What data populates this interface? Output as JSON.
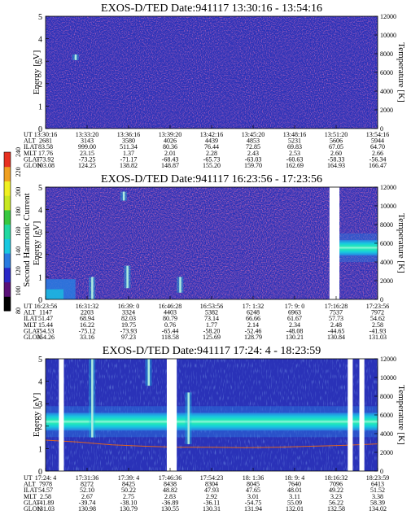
{
  "figure": {
    "colorbar": {
      "label": "Second Harmonic Current",
      "ticks": [
        "80",
        "100",
        "120",
        "140",
        "160",
        "180",
        "200",
        "220",
        "240"
      ],
      "colors": [
        "#000000",
        "#5a1078",
        "#2a28c8",
        "#2a7be0",
        "#18c8e0",
        "#20d8a0",
        "#38c840",
        "#c8e820",
        "#f0f020",
        "#f0a020",
        "#e83020"
      ]
    },
    "colors": {
      "background": "#2a32b8",
      "noise": "#701e7e",
      "band": "#22e8b8",
      "band_core": "#8ff8d8",
      "streak": "#ffffe0",
      "temperature_line": "#e06420",
      "gap": "#ffffff"
    }
  },
  "panels": [
    {
      "title": "EXOS-D/TED   Date:941117   13:30:16 - 13:54:16",
      "ylabel": "Energy [eV]",
      "y2label": "Temperature [K]",
      "yticks": [
        "0",
        "1",
        "2",
        "3",
        "4",
        "5"
      ],
      "y2ticks": [
        "0",
        "2000",
        "4000",
        "6000",
        "8000",
        "10000",
        "12000"
      ],
      "rows": [
        {
          "label": "UT",
          "values": [
            "13:30:16",
            "13:33:20",
            "13:36:16",
            "13:39:20",
            "13:42:16",
            "13:45:20",
            "13:48:16",
            "13:51:20",
            "13:54:16"
          ]
        },
        {
          "label": "ALT",
          "values": [
            "2681",
            "3143",
            "3580",
            "4026",
            "4439",
            "4853",
            "5231",
            "5606",
            "5944"
          ]
        },
        {
          "label": "ILAT",
          "values": [
            "83.58",
            "999.00",
            "511.34",
            "80.36",
            "76.44",
            "72.85",
            "69.83",
            "67.05",
            "64.70"
          ]
        },
        {
          "label": "MLT",
          "values": [
            "17.76",
            "23.15",
            "1.37",
            "2.01",
            "2.28",
            "2.43",
            "2.53",
            "2.60",
            "2.66"
          ]
        },
        {
          "label": "GLAT",
          "values": [
            "-73.92",
            "-73.25",
            "-71.17",
            "-68.43",
            "-65.73",
            "-63.03",
            "-60.63",
            "-58.33",
            "-56.34"
          ]
        },
        {
          "label": "GLON",
          "values": [
            "103.08",
            "124.25",
            "138.82",
            "148.87",
            "155.20",
            "159.70",
            "162.69",
            "164.93",
            "166.47"
          ]
        }
      ]
    },
    {
      "title": "EXOS-D/TED   Date:941117   16:23:56 - 17:23:56",
      "ylabel": "Energy [eV]",
      "y2label": "Temperature [K]",
      "yticks": [
        "0",
        "1",
        "2",
        "3",
        "4",
        "5"
      ],
      "y2ticks": [
        "0",
        "2000",
        "4000",
        "6000",
        "8000",
        "10000",
        "12000"
      ],
      "rows": [
        {
          "label": "UT",
          "values": [
            "16:23:56",
            "16:31:32",
            "16:39: 0",
            "16:46:28",
            "16:53:56",
            "17: 1:32",
            "17: 9: 0",
            "17:16:28",
            "17:23:56"
          ]
        },
        {
          "label": "ALT",
          "values": [
            "1147",
            "2203",
            "3324",
            "4403",
            "5382",
            "6248",
            "6963",
            "7537",
            "7972"
          ]
        },
        {
          "label": "ILAT",
          "values": [
            "51.47",
            "68.94",
            "82.03",
            "80.79",
            "73.14",
            "66.66",
            "61.67",
            "57.73",
            "54.62"
          ]
        },
        {
          "label": "MLT",
          "values": [
            "15.44",
            "16.22",
            "19.75",
            "0.76",
            "1.77",
            "2.14",
            "2.34",
            "2.48",
            "2.58"
          ]
        },
        {
          "label": "GLAT",
          "values": [
            "-54.53",
            "-75.12",
            "-73.93",
            "-65.44",
            "-58.20",
            "-52.46",
            "-48.08",
            "-44.65",
            "-41.93"
          ]
        },
        {
          "label": "GLON",
          "values": [
            "354.26",
            "33.16",
            "97.23",
            "118.58",
            "125.69",
            "128.79",
            "130.21",
            "130.84",
            "131.03"
          ]
        }
      ]
    },
    {
      "title": "EXOS-D/TED   Date:941117   17:24: 4 - 18:23:59",
      "ylabel": "Energy [eV]",
      "y2label": "Temperature [K]",
      "yticks": [
        "0",
        "1",
        "2",
        "3",
        "4",
        "5"
      ],
      "y2ticks": [
        "0",
        "2000",
        "4000",
        "6000",
        "8000",
        "10000",
        "12000"
      ],
      "rows": [
        {
          "label": "UT",
          "values": [
            "17:24: 4",
            "17:31:36",
            "17:39: 4",
            "17:46:36",
            "17:54:23",
            "18: 1:36",
            "18: 9: 4",
            "18:16:32",
            "18:23:59"
          ]
        },
        {
          "label": "ALT",
          "values": [
            "7978",
            "8272",
            "8425",
            "8438",
            "8304",
            "8045",
            "7640",
            "7096",
            "6413"
          ]
        },
        {
          "label": "ILAT",
          "values": [
            "54.57",
            "52.10",
            "50.22",
            "48.82",
            "47.93",
            "47.65",
            "48.01",
            "49.22",
            "51.52"
          ]
        },
        {
          "label": "MLT",
          "values": [
            "2.58",
            "2.67",
            "2.75",
            "2.83",
            "2.92",
            "3.01",
            "3.11",
            "3.23",
            "3.38"
          ]
        },
        {
          "label": "GLAT",
          "values": [
            "-41.89",
            "-39.74",
            "-38.10",
            "-36.89",
            "-36.11",
            "-54.75",
            "55.09",
            "56.22",
            "58.39"
          ]
        },
        {
          "label": "GLON",
          "values": [
            "131.03",
            "130.98",
            "130.79",
            "130.55",
            "130.31",
            "131.94",
            "132.01",
            "132.58",
            "134.02"
          ]
        }
      ]
    }
  ],
  "chart_data": [
    {
      "type": "heatmap",
      "title": "EXOS-D/TED   Date:941117   13:30:16 - 13:54:16",
      "xlabel": "",
      "ylabel": "Energy [eV]",
      "y2label": "Temperature [K]",
      "x_ticks": [
        "13:30:16",
        "13:33:20",
        "13:36:16",
        "13:39:20",
        "13:42:16",
        "13:45:20",
        "13:48:16",
        "13:51:20",
        "13:54:16"
      ],
      "ylim": [
        0,
        5
      ],
      "y2lim": [
        0,
        12000
      ],
      "color_scale": [
        80,
        240
      ],
      "data_gaps": [],
      "features": [
        {
          "x_fraction": 0.09,
          "energy": [
            3.05,
            3.3
          ],
          "description": "bright point"
        }
      ],
      "band": null,
      "temperature_line": null
    },
    {
      "type": "heatmap",
      "title": "EXOS-D/TED   Date:941117   16:23:56 - 17:23:56",
      "xlabel": "",
      "ylabel": "Energy [eV]",
      "y2label": "Temperature [K]",
      "x_ticks": [
        "16:23:56",
        "16:31:32",
        "16:39: 0",
        "16:46:28",
        "16:53:56",
        "17: 1:32",
        "17: 9: 0",
        "17:16:28",
        "17:23:56"
      ],
      "ylim": [
        0,
        5
      ],
      "y2lim": [
        0,
        12000
      ],
      "color_scale": [
        80,
        240
      ],
      "data_gaps": [
        [
          0.855,
          0.885
        ]
      ],
      "features": [
        {
          "x_fraction": 0.14,
          "energy": [
            0,
            1.0
          ],
          "description": "vertical streak"
        },
        {
          "x_fraction": 0.235,
          "energy": [
            4.4,
            4.8
          ],
          "description": "vertical streak"
        },
        {
          "x_fraction": 0.246,
          "energy": [
            0.5,
            1.5
          ],
          "description": "vertical streak"
        },
        {
          "x_fraction": 0.405,
          "energy": [
            0.3,
            1.0
          ],
          "description": "vertical streak"
        }
      ],
      "band": {
        "x_fraction": [
          0.885,
          1.0
        ],
        "energy_center": 2.3,
        "energy_width": 0.7
      },
      "low_energy_enhancement": {
        "x_fraction": [
          0.0,
          0.09
        ],
        "energy": [
          0,
          0.9
        ]
      },
      "temperature_line": null
    },
    {
      "type": "heatmap",
      "title": "EXOS-D/TED   Date:941117   17:24: 4 - 18:23:59",
      "xlabel": "",
      "ylabel": "Energy [eV]",
      "y2label": "Temperature [K]",
      "x_ticks": [
        "17:24: 4",
        "17:31:36",
        "17:39: 4",
        "17:46:36",
        "17:54:23",
        "18: 1:36",
        "18: 9: 4",
        "18:16:32",
        "18:23:59"
      ],
      "ylim": [
        0,
        5
      ],
      "y2lim": [
        0,
        12000
      ],
      "color_scale": [
        80,
        240
      ],
      "data_gaps": [
        [
          0.04,
          0.055
        ],
        [
          0.365,
          0.395
        ],
        [
          0.91,
          0.925
        ],
        [
          0.945,
          0.96
        ]
      ],
      "features": [
        {
          "x_fraction": 0.14,
          "energy": [
            1.5,
            5.0
          ],
          "description": "vertical streak"
        },
        {
          "x_fraction": 0.31,
          "energy": [
            3.8,
            5.0
          ],
          "description": "vertical streak"
        },
        {
          "x_fraction": 0.43,
          "energy": [
            1.2,
            3.5
          ],
          "description": "vertical streak"
        }
      ],
      "band": {
        "x_fraction": [
          0.0,
          1.0
        ],
        "energy_center": 2.2,
        "energy_width": 0.8
      },
      "temperature_line": {
        "x": [
          0,
          0.1,
          0.2,
          0.3,
          0.4,
          0.5,
          0.6,
          0.7,
          0.8,
          0.9,
          1.0
        ],
        "y": [
          3300,
          3100,
          2800,
          2650,
          2550,
          2550,
          2500,
          2550,
          2650,
          2750,
          2900
        ]
      }
    }
  ]
}
